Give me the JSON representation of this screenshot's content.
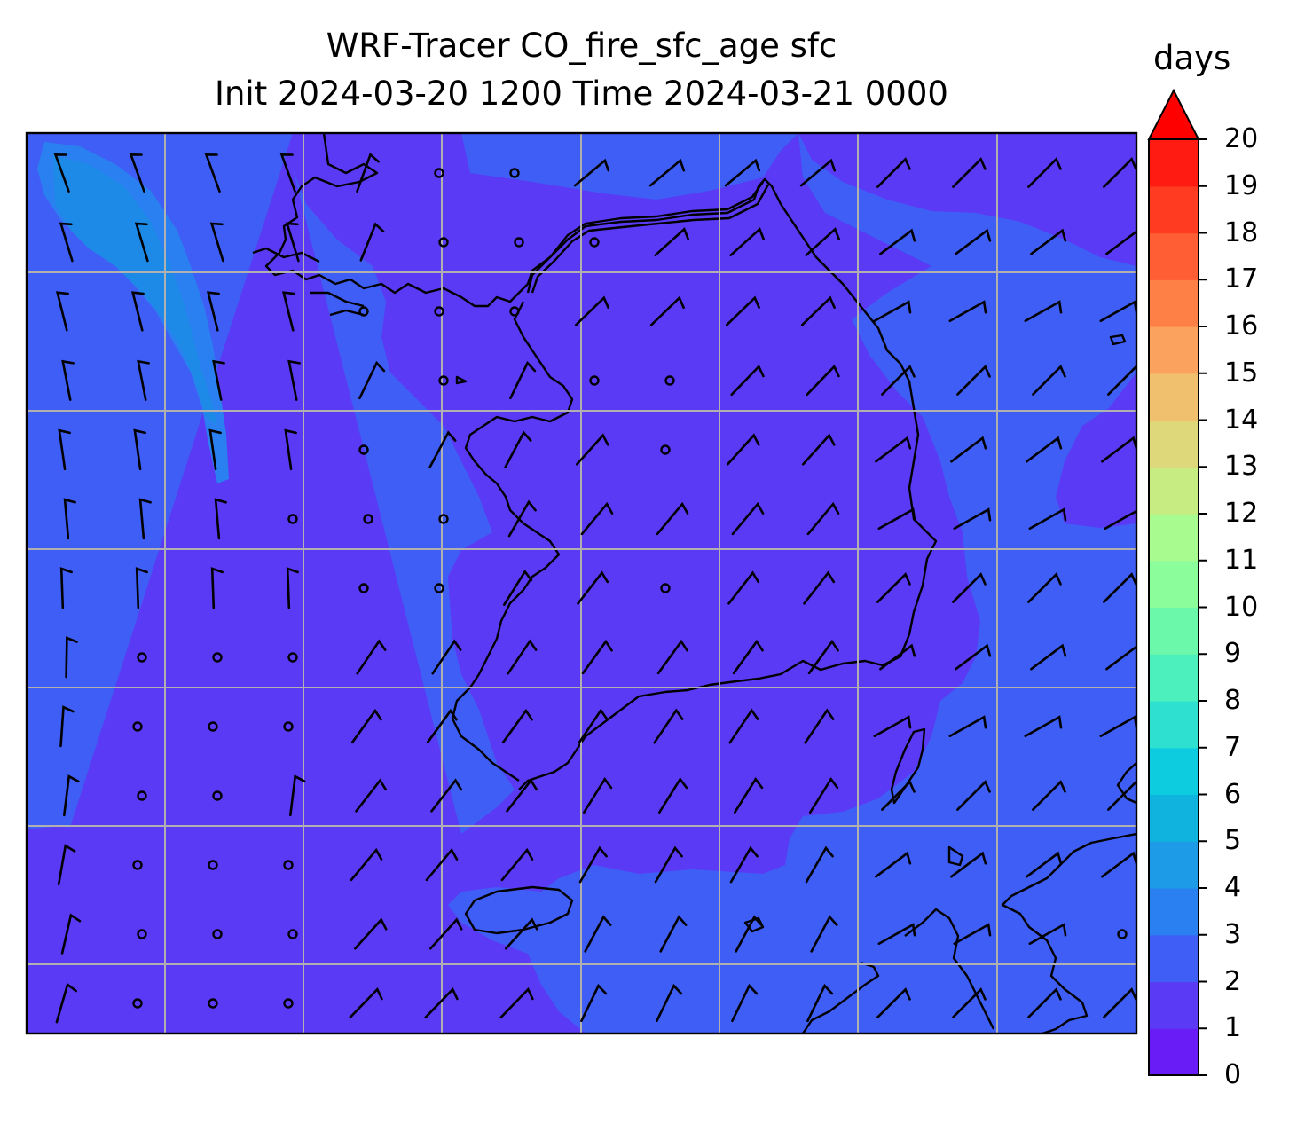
{
  "title": {
    "line1": "WRF-Tracer CO_fire_sfc_age sfc",
    "line2": "Init 2024-03-20 1200 Time 2024-03-21 0000"
  },
  "colorbar": {
    "unit": "days",
    "extend": "max",
    "ticks": [
      "0",
      "1",
      "2",
      "3",
      "4",
      "5",
      "6",
      "7",
      "8",
      "9",
      "10",
      "11",
      "12",
      "13",
      "14",
      "15",
      "16",
      "17",
      "18",
      "19",
      "20"
    ],
    "colors": [
      "#6a1cf6",
      "#5a3af5",
      "#3f5ef5",
      "#2a80f0",
      "#1e9be7",
      "#10b3de",
      "#0dcce0",
      "#2ee0cf",
      "#4bf0bd",
      "#6cf8aa",
      "#8bfd9a",
      "#a8fb8e",
      "#c6ec82",
      "#dfd87a",
      "#f1c06e",
      "#fba35e",
      "#ff8047",
      "#ff5d34",
      "#ff3b22",
      "#ff1a12"
    ],
    "extend_color": "#ff0000"
  },
  "map": {
    "background_color": "#3f5ef5",
    "young_air_color": "#5a3af5",
    "older_air_color": "#2a80f0",
    "oldest_air_color": "#1e8ae8"
  }
}
